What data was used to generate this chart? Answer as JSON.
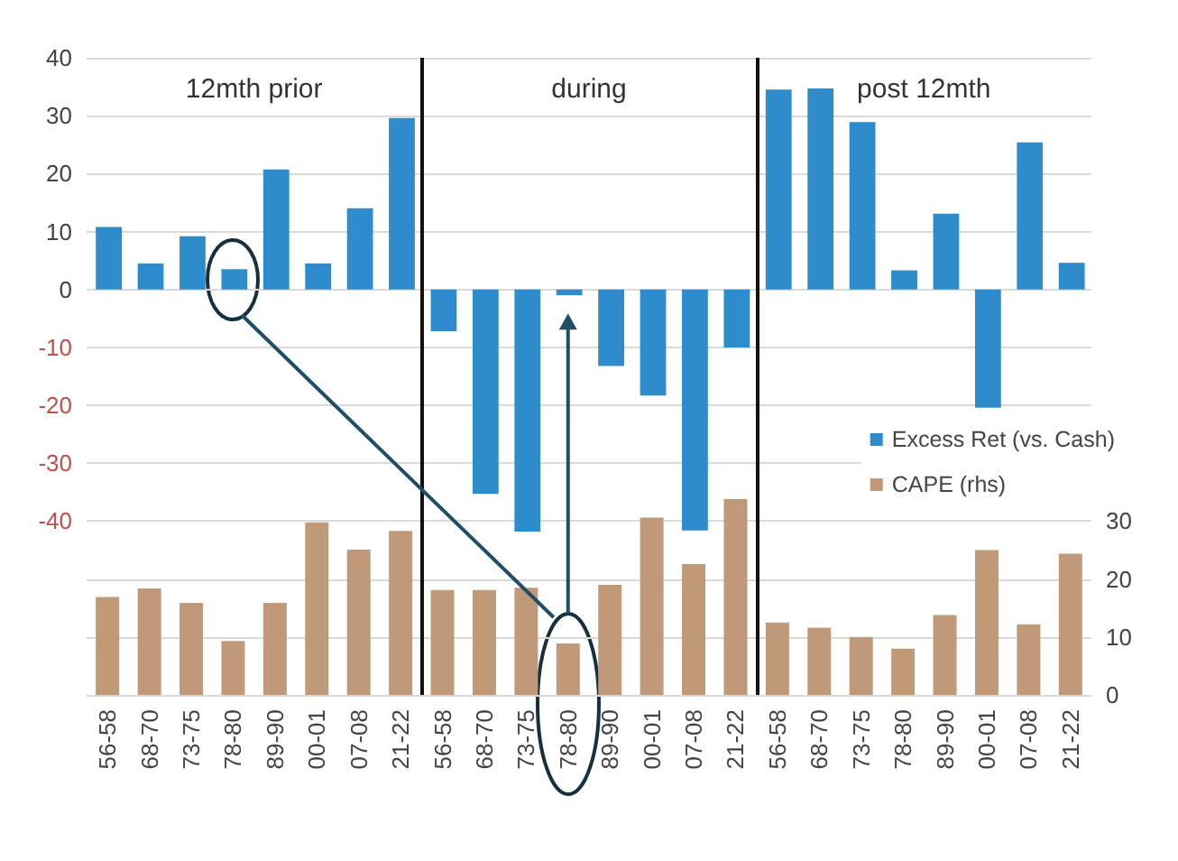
{
  "chart_data": {
    "type": "bar",
    "categories": [
      "56-58",
      "68-70",
      "73-75",
      "78-80",
      "89-90",
      "00-01",
      "07-08",
      "21-22",
      "56-58",
      "68-70",
      "73-75",
      "78-80",
      "89-90",
      "00-01",
      "07-08",
      "21-22",
      "56-58",
      "68-70",
      "73-75",
      "78-80",
      "89-90",
      "00-01",
      "07-08",
      "21-22"
    ],
    "series": [
      {
        "name": "Excess Ret (vs. Cash)",
        "color": "#2e8ccc",
        "values": [
          10.8,
          4.5,
          9.2,
          3.5,
          20.7,
          4.5,
          14,
          29.6,
          -7.2,
          -35.3,
          -41.8,
          -1,
          -13.2,
          -18.3,
          -41.6,
          -10,
          34.5,
          34.7,
          28.9,
          3.3,
          13.1,
          -20.4,
          25.4,
          4.6
        ]
      },
      {
        "name": "CAPE (rhs)",
        "color": "#c09a78",
        "axis": "y2",
        "values": [
          16.9,
          18.4,
          15.9,
          9.3,
          15.9,
          29.8,
          25.1,
          28.3,
          18.1,
          18.1,
          18.5,
          8.9,
          19,
          30.6,
          22.6,
          33.8,
          12.5,
          11.6,
          10,
          8,
          13.8,
          25,
          12.2,
          24.4
        ]
      }
    ],
    "annotations": [
      "12mth prior",
      "during",
      "post 12mth"
    ],
    "ylim": [
      -70,
      40
    ],
    "yticks": [
      40,
      30,
      20,
      10,
      0,
      -10,
      -20,
      -30,
      -40,
      {
        "value": -50,
        "label": null
      },
      {
        "value": -60,
        "label": null
      },
      {
        "value": -70,
        "label": null
      }
    ],
    "y2lim": [
      0,
      110
    ],
    "y2ticks": [
      0,
      10,
      20,
      30
    ],
    "grid": "y",
    "legend": "right"
  }
}
